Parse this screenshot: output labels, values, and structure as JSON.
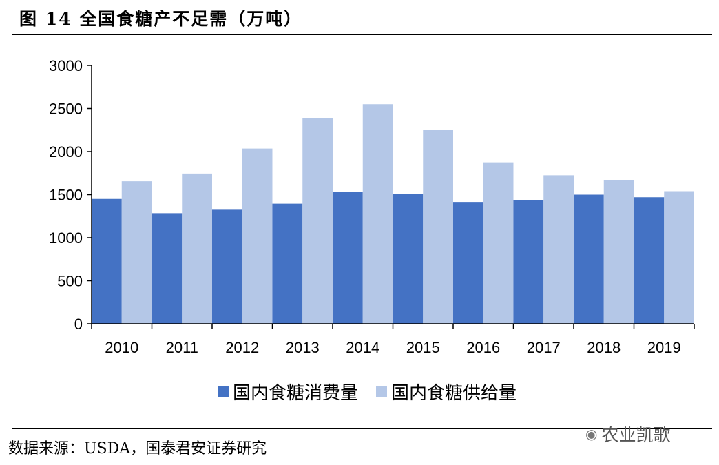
{
  "figure": {
    "title": "图 14 全国食糖产不足需（万吨）",
    "source": "数据来源：USDA，国泰君安证券研究",
    "watermark": "农业凯歌",
    "watermark_icon": "wechat-icon"
  },
  "chart_data": {
    "type": "bar",
    "categories": [
      "2010",
      "2011",
      "2012",
      "2013",
      "2014",
      "2015",
      "2016",
      "2017",
      "2018",
      "2019"
    ],
    "series": [
      {
        "name": "国内食糖消费量",
        "color": "#4472c4",
        "values": [
          1450,
          1285,
          1325,
          1395,
          1535,
          1510,
          1415,
          1440,
          1500,
          1470
        ]
      },
      {
        "name": "国内食糖供给量",
        "color": "#b4c7e7",
        "values": [
          1655,
          1745,
          2035,
          2390,
          2550,
          2250,
          1875,
          1725,
          1665,
          1540
        ]
      }
    ],
    "ylim": [
      0,
      3000
    ],
    "yticks": [
      "0",
      "500",
      "1000",
      "1500",
      "2000",
      "2500",
      "3000"
    ],
    "grid": false,
    "legend": "bottom"
  }
}
